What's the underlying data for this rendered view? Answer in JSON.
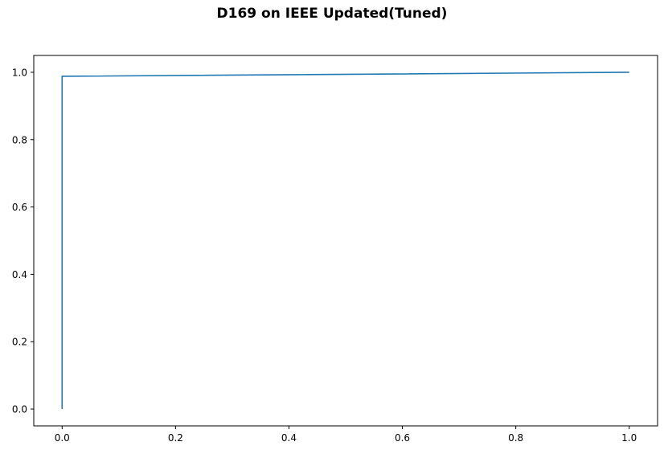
{
  "chart_data": {
    "type": "line",
    "title": "D169 on IEEE Updated(Tuned)",
    "xlabel": "",
    "ylabel": "",
    "xlim": [
      -0.05,
      1.05
    ],
    "ylim": [
      -0.05,
      1.05
    ],
    "xticks": [
      0.0,
      0.2,
      0.4,
      0.6,
      0.8,
      1.0
    ],
    "xtick_labels": [
      "0.0",
      "0.2",
      "0.4",
      "0.6",
      "0.8",
      "1.0"
    ],
    "yticks": [
      0.0,
      0.2,
      0.4,
      0.6,
      0.8,
      1.0
    ],
    "ytick_labels": [
      "0.0",
      "0.2",
      "0.4",
      "0.6",
      "0.8",
      "1.0"
    ],
    "grid": false,
    "legend": false,
    "series": [
      {
        "color": "#1f77b4",
        "x": [
          0.0,
          0.0,
          0.0,
          1.0
        ],
        "y": [
          0.0,
          0.0,
          0.988,
          1.0
        ]
      }
    ]
  }
}
